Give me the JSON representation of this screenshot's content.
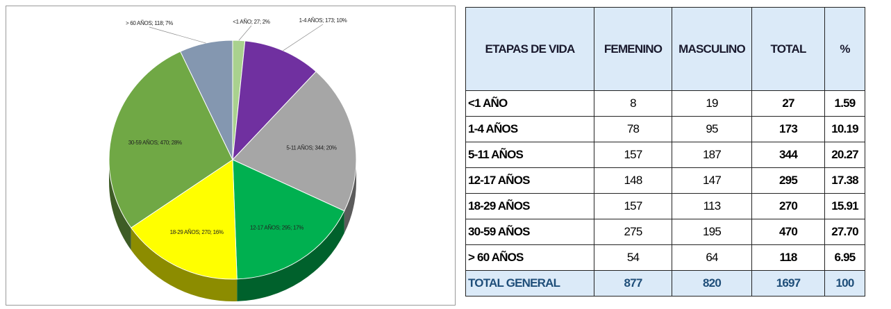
{
  "chart_data": {
    "type": "pie",
    "categories": [
      "<1 AÑO",
      "1-4 AÑOS",
      "5-11 AÑOS",
      "12-17 AÑOS",
      "18-29 AÑOS",
      "30-59 AÑOS",
      "> 60 AÑOS"
    ],
    "values": [
      27,
      173,
      344,
      295,
      270,
      470,
      118
    ],
    "value_labels": [
      "<1 AÑO; 27; 2%",
      "1-4 AÑOS; 173; 10%",
      "5-11 AÑOS; 344; 20%",
      "12-17 AÑOS; 295; 17%",
      "18-29 AÑOS; 270; 16%",
      "30-59 AÑOS; 470; 28%",
      "> 60 AÑOS; 118; 7%"
    ],
    "colors": [
      "#a9d18e",
      "#7030a0",
      "#a6a6a6",
      "#00b050",
      "#ffff00",
      "#70a845",
      "#8497b0"
    ]
  },
  "table": {
    "header": [
      "ETAPAS DE VIDA",
      "FEMENINO",
      "MASCULINO",
      "TOTAL",
      "%"
    ],
    "rows": [
      [
        "<1 AÑO",
        "8",
        "19",
        "27",
        "1.59"
      ],
      [
        "1-4 AÑOS",
        "78",
        "95",
        "173",
        "10.19"
      ],
      [
        "5-11 AÑOS",
        "157",
        "187",
        "344",
        "20.27"
      ],
      [
        "12-17 AÑOS",
        "148",
        "147",
        "295",
        "17.38"
      ],
      [
        "18-29 AÑOS",
        "157",
        "113",
        "270",
        "15.91"
      ],
      [
        "30-59 AÑOS",
        "275",
        "195",
        "470",
        "27.70"
      ],
      [
        "> 60 AÑOS",
        "54",
        "64",
        "118",
        "6.95"
      ]
    ],
    "total": [
      "TOTAL GENERAL",
      "877",
      "820",
      "1697",
      "100"
    ]
  }
}
